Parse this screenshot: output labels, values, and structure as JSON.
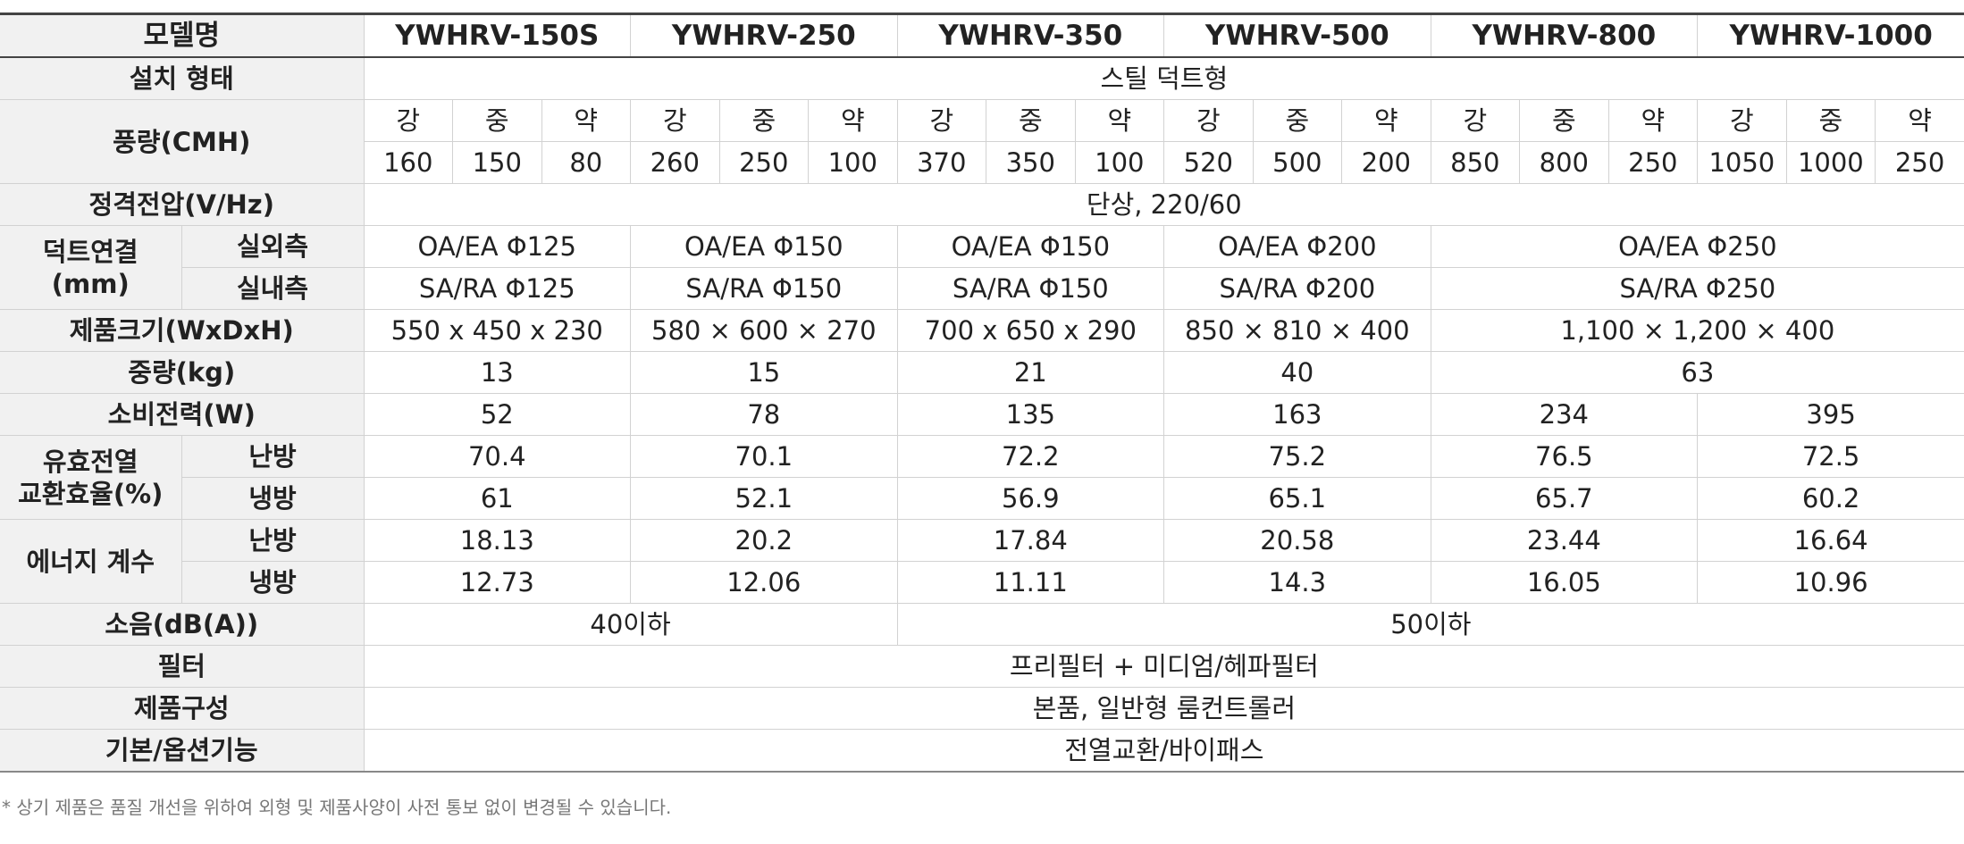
{
  "header": {
    "label": "모델명",
    "models": [
      "YWHRV-150S",
      "YWHRV-250",
      "YWHRV-350",
      "YWHRV-500",
      "YWHRV-800",
      "YWHRV-1000"
    ]
  },
  "install_type": {
    "label": "설치 형태",
    "value": "스틸 덕트형"
  },
  "airflow": {
    "label": "풍량(CMH)",
    "levels": [
      [
        "강",
        "중",
        "약"
      ],
      [
        "강",
        "중",
        "약"
      ],
      [
        "강",
        "중",
        "약"
      ],
      [
        "강",
        "중",
        "약"
      ],
      [
        "강",
        "중",
        "약"
      ],
      [
        "강",
        "중",
        "약"
      ]
    ],
    "values": [
      [
        160,
        150,
        80
      ],
      [
        260,
        250,
        100
      ],
      [
        370,
        350,
        100
      ],
      [
        520,
        500,
        200
      ],
      [
        850,
        800,
        250
      ],
      [
        1050,
        1000,
        250
      ]
    ]
  },
  "rated_voltage": {
    "label": "정격전압(V/Hz)",
    "value": "단상, 220/60"
  },
  "duct": {
    "label": [
      "덕트연결",
      "(mm)"
    ],
    "outdoor": {
      "label": "실외측",
      "values": [
        "OA/EA Φ125",
        "OA/EA Φ150",
        "OA/EA Φ150",
        "OA/EA Φ200",
        "OA/EA Φ250"
      ]
    },
    "indoor": {
      "label": "실내측",
      "values": [
        "SA/RA Φ125",
        "SA/RA Φ150",
        "SA/RA Φ150",
        "SA/RA Φ200",
        "SA/RA Φ250"
      ]
    }
  },
  "size": {
    "label": "제품크기(WxDxH)",
    "values": [
      "550 x 450 x 230",
      "580 × 600 × 270",
      "700 x 650 x 290",
      "850 × 810 × 400",
      "1,100 × 1,200 × 400"
    ]
  },
  "weight": {
    "label": "중량(kg)",
    "values": [
      13,
      15,
      21,
      40,
      63
    ]
  },
  "power": {
    "label": "소비전력(W)",
    "values": [
      52,
      78,
      135,
      163,
      234,
      395
    ]
  },
  "efficiency": {
    "label": [
      "유효전열",
      "교환효율(%)"
    ],
    "heating": {
      "label": "난방",
      "values": [
        70.4,
        70.1,
        72.2,
        75.2,
        76.5,
        72.5
      ]
    },
    "cooling": {
      "label": "냉방",
      "values": [
        61,
        52.1,
        56.9,
        65.1,
        65.7,
        60.2
      ]
    }
  },
  "energy": {
    "label": "에너지 계수",
    "heating": {
      "label": "난방",
      "values": [
        18.13,
        20.2,
        17.84,
        20.58,
        23.44,
        16.64
      ]
    },
    "cooling": {
      "label": "냉방",
      "values": [
        12.73,
        12.06,
        11.11,
        14.3,
        16.05,
        10.96
      ]
    }
  },
  "noise": {
    "label": "소음(dB(A))",
    "values": [
      "40이하",
      "50이하"
    ]
  },
  "filter": {
    "label": "필터",
    "value": "프리필터 + 미디엄/헤파필터"
  },
  "composition": {
    "label": "제품구성",
    "value": "본품, 일반형 룸컨트롤러"
  },
  "function": {
    "label": "기본/옵션기능",
    "value": "전열교환/바이패스"
  },
  "footnote": "* 상기 제품은 품질 개선을 위하여 외형 및 제품사양이 사전 통보 없이 변경될 수 있습니다."
}
